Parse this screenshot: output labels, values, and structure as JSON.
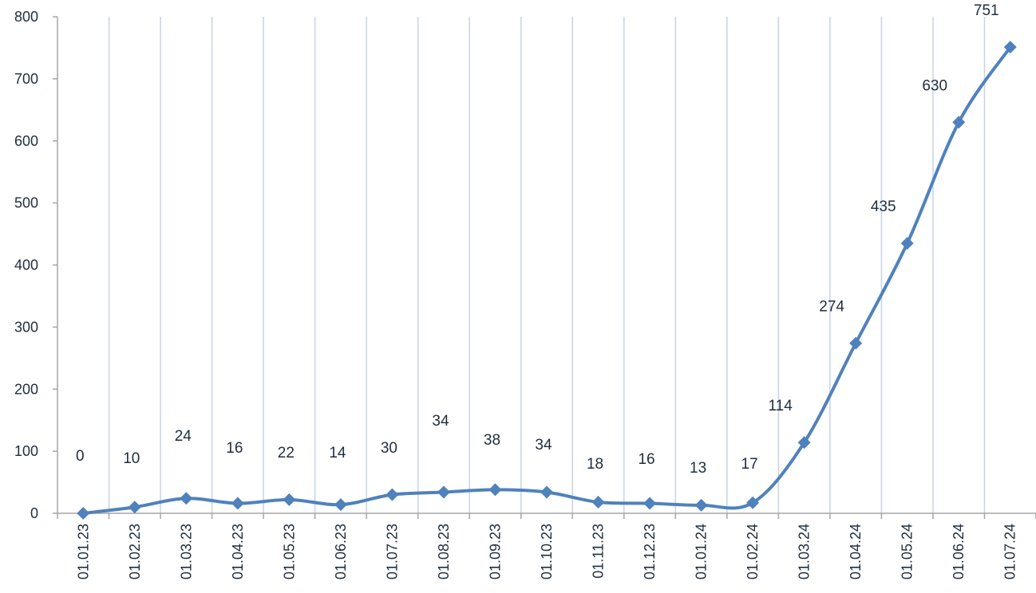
{
  "chart_data": {
    "type": "line",
    "title": "",
    "xlabel": "",
    "ylabel": "",
    "categories": [
      "01.01.23",
      "01.02.23",
      "01.03.23",
      "01.04.23",
      "01.05.23",
      "01.06.23",
      "01.07.23",
      "01.08.23",
      "01.09.23",
      "01.10.23",
      "01.11.23",
      "01.12.23",
      "01.01.24",
      "01.02.24",
      "01.03.24",
      "01.04.24",
      "01.05.24",
      "01.06.24",
      "01.07.24"
    ],
    "series": [
      {
        "values": [
          0,
          10,
          24,
          16,
          22,
          14,
          30,
          34,
          38,
          34,
          18,
          16,
          13,
          17,
          114,
          274,
          435,
          630,
          751
        ]
      }
    ],
    "ylim": [
      0,
      800
    ],
    "yticks": [
      0,
      100,
      200,
      300,
      400,
      500,
      600,
      700,
      800
    ],
    "smooth": true,
    "markers": "diamond",
    "grid": "vertical",
    "legend": "none",
    "colors": {
      "line": "#4f81bd",
      "grid": "#c5d3ea",
      "axis": "#a6a6a6",
      "text": "#1f2d3d"
    }
  }
}
